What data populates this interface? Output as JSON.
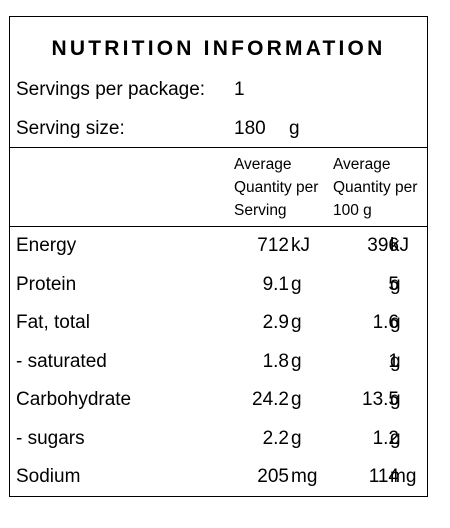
{
  "title": "NUTRITION INFORMATION",
  "servings_per_package": {
    "label": "Servings per package:",
    "value": "1"
  },
  "serving_size": {
    "label": "Serving size:",
    "value": "180",
    "unit": "g"
  },
  "column_headers": {
    "per_serving": [
      "Average",
      "Quantity per",
      "Serving"
    ],
    "per_100g": [
      "Average",
      "Quantity per",
      "100 g"
    ]
  },
  "rows": [
    {
      "label": "Energy",
      "serving": "712",
      "serving_unit": "kJ",
      "per100": "396",
      "per100_unit": "kJ"
    },
    {
      "label": "Protein",
      "serving": "9.1",
      "serving_unit": "g",
      "per100": "5",
      "per100_unit": "g"
    },
    {
      "label": "Fat, total",
      "serving": "2.9",
      "serving_unit": "g",
      "per100": "1.6",
      "per100_unit": "g"
    },
    {
      "label": "- saturated",
      "serving": "1.8",
      "serving_unit": "g",
      "per100": "1",
      "per100_unit": "g"
    },
    {
      "label": "Carbohydrate",
      "serving": "24.2",
      "serving_unit": "g",
      "per100": "13.5",
      "per100_unit": "g"
    },
    {
      "label": "- sugars",
      "serving": "2.2",
      "serving_unit": "g",
      "per100": "1.2",
      "per100_unit": "g"
    },
    {
      "label": "Sodium",
      "serving": "205",
      "serving_unit": "mg",
      "per100": "114",
      "per100_unit": "mg"
    }
  ]
}
